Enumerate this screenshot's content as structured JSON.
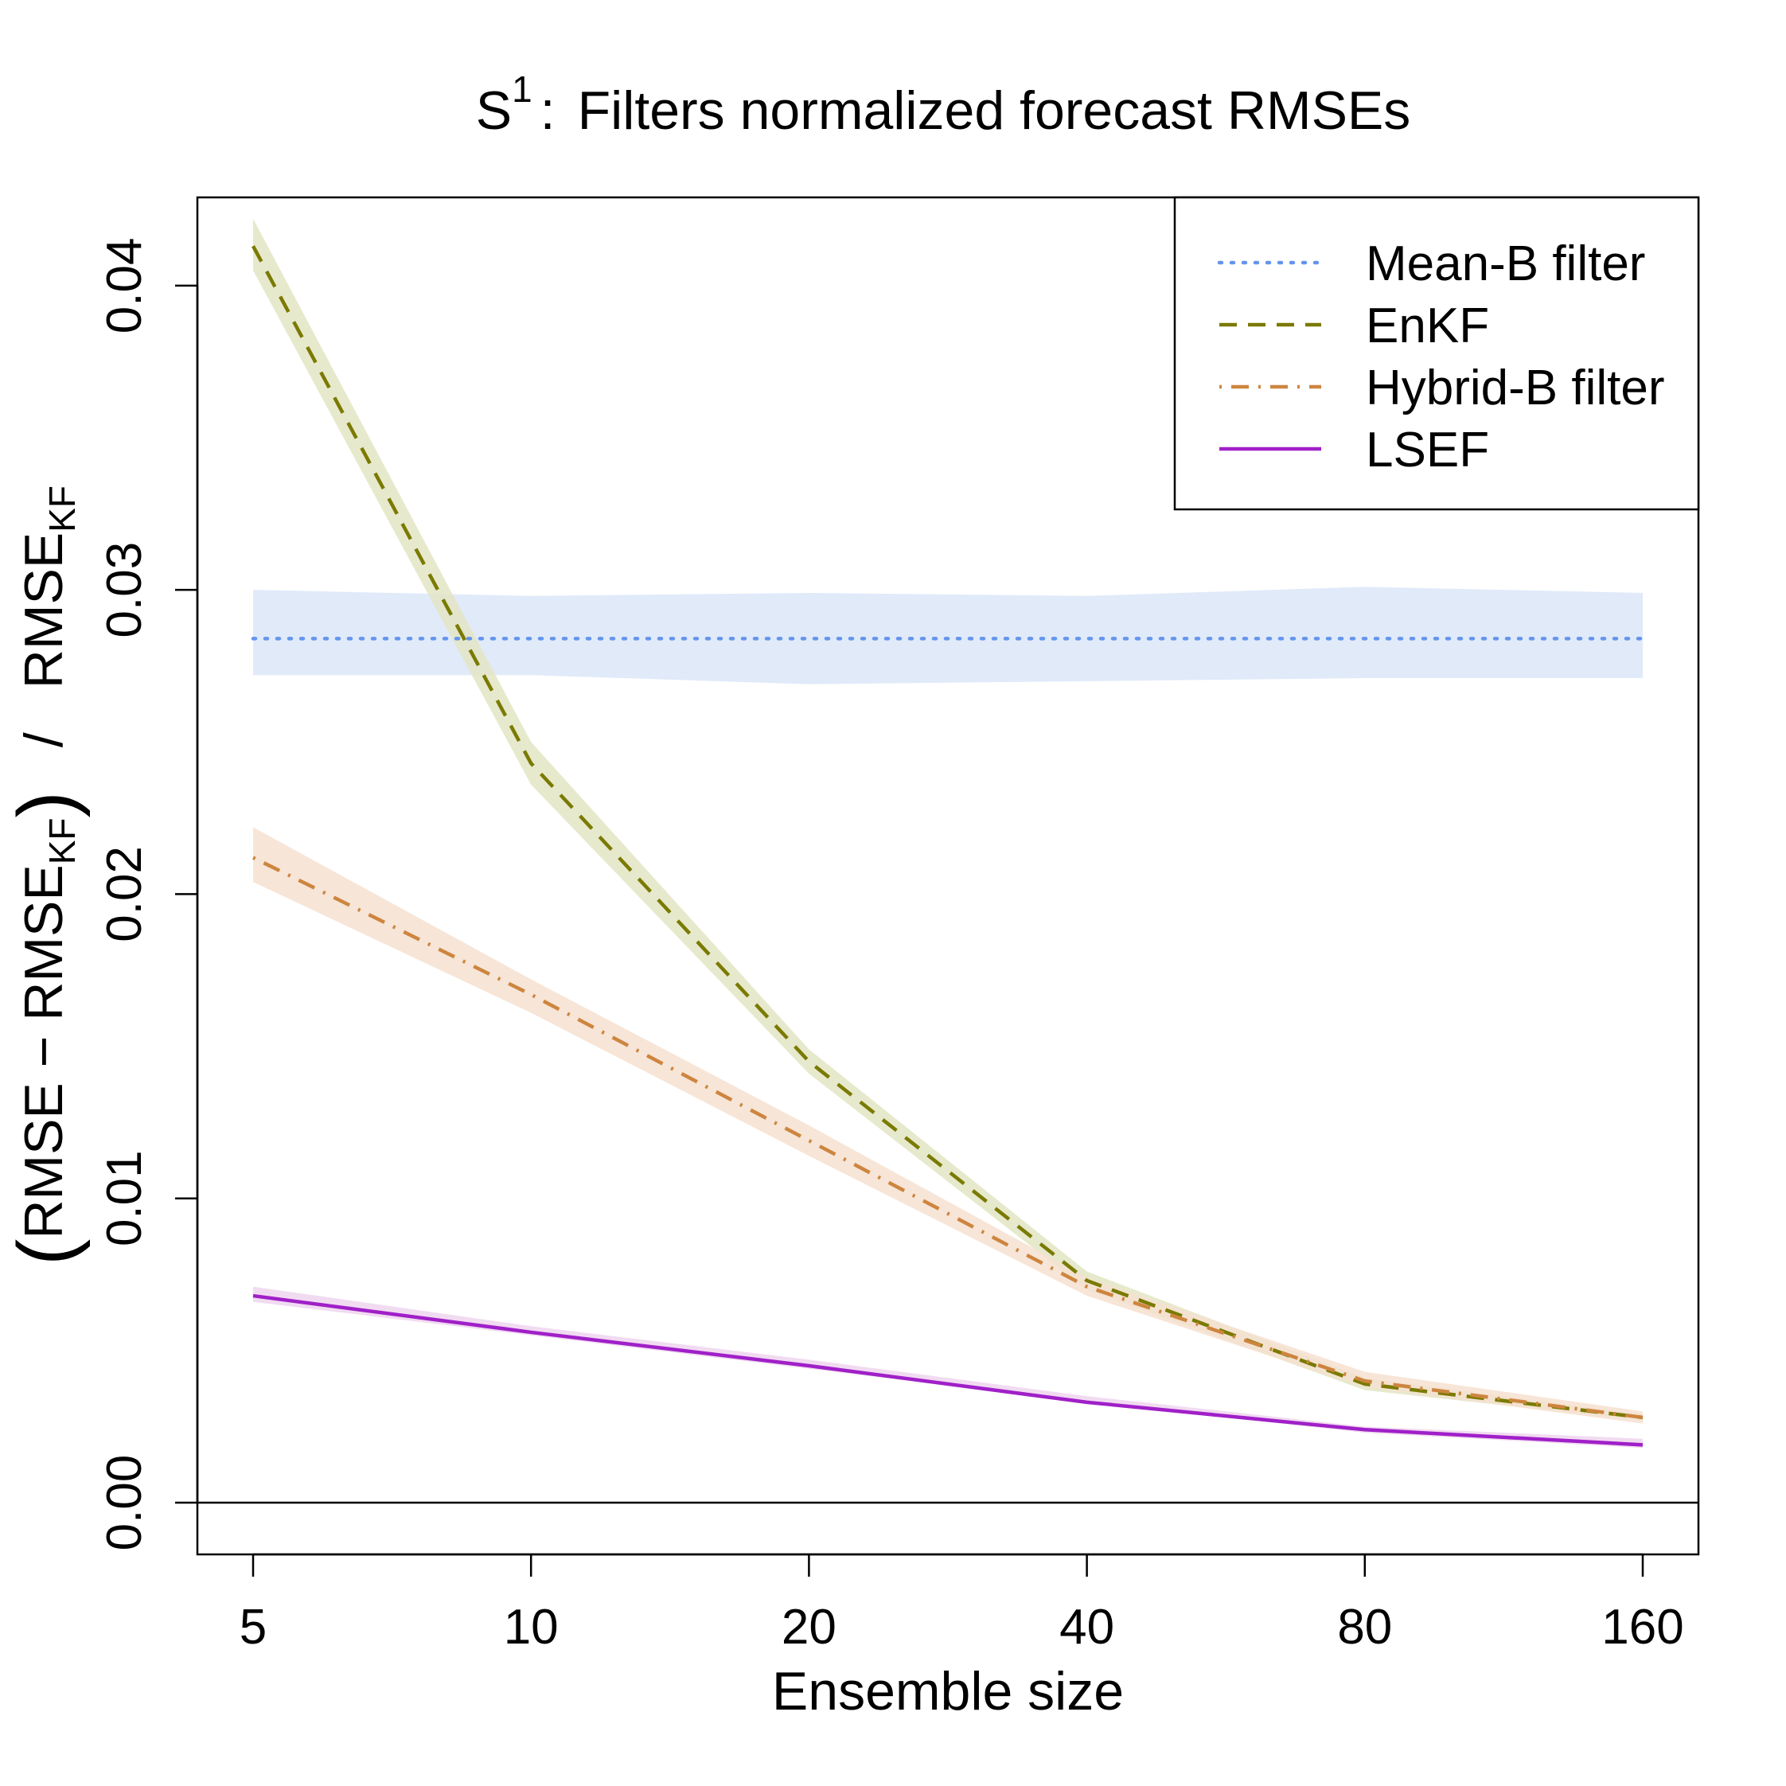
{
  "chart_data": {
    "type": "line",
    "title": {
      "prefix": "S",
      "superscript": "1",
      "separator": ":",
      "text": "Filters normalized forecast RMSEs"
    },
    "xlabel": "Ensemble size",
    "ylabel": {
      "open_paren": "(",
      "part1": "RMSE − RMSE",
      "sub1": "KF",
      "close_paren": ")",
      "slash": "/",
      "part2": "RMSE",
      "sub2": "KF"
    },
    "x_scale": "log2",
    "x": [
      5,
      10,
      20,
      40,
      80,
      160
    ],
    "x_tick_labels": [
      "5",
      "10",
      "20",
      "40",
      "80",
      "160"
    ],
    "y_ticks": [
      0.0,
      0.01,
      0.02,
      0.03,
      0.04
    ],
    "y_tick_labels": [
      "0.00",
      "0.01",
      "0.02",
      "0.03",
      "0.04"
    ],
    "ylim": [
      -0.0017,
      0.0429
    ],
    "reference_line_y": 0,
    "legend_position": "top-right",
    "series": [
      {
        "name": "Mean-B filter",
        "color": "#6495ED",
        "band_color": "#dbe6f8",
        "linestyle": "dotted",
        "values": [
          0.0284,
          0.0284,
          0.0284,
          0.0284,
          0.0284,
          0.0284
        ],
        "lower": [
          0.0272,
          0.0272,
          0.0269,
          0.027,
          0.0271,
          0.0271
        ],
        "upper": [
          0.03,
          0.0298,
          0.0299,
          0.0298,
          0.0301,
          0.0299
        ]
      },
      {
        "name": "EnKF",
        "color": "#7a7a00",
        "band_color": "#e3e5c4",
        "linestyle": "dashed",
        "values": [
          0.0413,
          0.0243,
          0.0145,
          0.0073,
          0.0039,
          0.0028
        ],
        "lower": [
          0.0405,
          0.0236,
          0.0141,
          0.007,
          0.0037,
          0.0027
        ],
        "upper": [
          0.0422,
          0.025,
          0.0149,
          0.0076,
          0.0041,
          0.0029
        ]
      },
      {
        "name": "Hybrid-B filter",
        "color": "#cd853f",
        "band_color": "#f6e0d0",
        "linestyle": "dotdash",
        "values": [
          0.0212,
          0.0167,
          0.0119,
          0.0071,
          0.004,
          0.0028
        ],
        "lower": [
          0.0204,
          0.0161,
          0.0114,
          0.0068,
          0.0038,
          0.0026
        ],
        "upper": [
          0.0222,
          0.0172,
          0.0124,
          0.0074,
          0.0043,
          0.003
        ]
      },
      {
        "name": "LSEF",
        "color": "#a020c8",
        "band_color": "#eed5ee",
        "linestyle": "solid",
        "values": [
          0.0068,
          0.0056,
          0.0045,
          0.0033,
          0.0024,
          0.0019
        ],
        "lower": [
          0.0066,
          0.0055,
          0.0044,
          0.0033,
          0.0023,
          0.0018
        ],
        "upper": [
          0.0071,
          0.0058,
          0.0047,
          0.0035,
          0.0025,
          0.0021
        ]
      }
    ]
  }
}
